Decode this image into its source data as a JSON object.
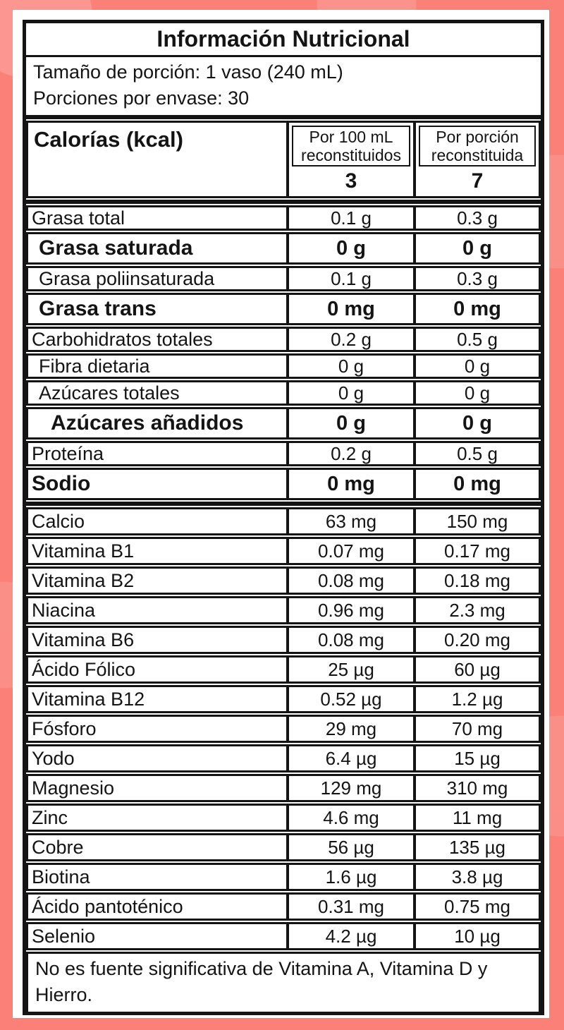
{
  "colors": {
    "background_pink": "#fa8078",
    "table_border_black": "#141414",
    "panel_white": "#ffffff"
  },
  "label": {
    "title": "Información Nutricional",
    "serving": {
      "line1": "Tamaño de porción: 1 vaso (240 mL)",
      "line2": "Porciones por envase: 30"
    },
    "calories": {
      "label": "Calorías (kcal)",
      "col1_header": "Por 100 mL reconstituidos",
      "col2_header": "Por porción reconstituida",
      "per_100ml": "3",
      "per_portion": "7"
    },
    "rows": [
      {
        "label": "Grasa total",
        "per_100ml": "0.1 g",
        "per_portion": "0.3 g",
        "style": "regular",
        "indent": 0,
        "group": "macro",
        "thick_separator_after": false
      },
      {
        "label": "Grasa saturada",
        "per_100ml": "0 g",
        "per_portion": "0 g",
        "style": "bold",
        "indent": 1,
        "group": "macro",
        "thick_separator_after": false
      },
      {
        "label": "Grasa poliinsaturada",
        "per_100ml": "0.1 g",
        "per_portion": "0.3 g",
        "style": "regular",
        "indent": 1,
        "group": "macro",
        "thick_separator_after": false
      },
      {
        "label": "Grasa trans",
        "per_100ml": "0 mg",
        "per_portion": "0 mg",
        "style": "bold",
        "indent": 1,
        "group": "macro",
        "thick_separator_after": false
      },
      {
        "label": "Carbohidratos totales",
        "per_100ml": "0.2 g",
        "per_portion": "0.5 g",
        "style": "regular",
        "indent": 0,
        "group": "macro",
        "thick_separator_after": false
      },
      {
        "label": "Fibra dietaria",
        "per_100ml": "0 g",
        "per_portion": "0 g",
        "style": "regular",
        "indent": 1,
        "group": "macro",
        "thick_separator_after": false
      },
      {
        "label": "Azúcares totales",
        "per_100ml": "0 g",
        "per_portion": "0 g",
        "style": "regular",
        "indent": 1,
        "group": "macro",
        "thick_separator_after": false
      },
      {
        "label": "Azúcares añadidos",
        "per_100ml": "0 g",
        "per_portion": "0 g",
        "style": "bold",
        "indent": 2,
        "group": "macro",
        "thick_separator_after": false
      },
      {
        "label": "Proteína",
        "per_100ml": "0.2 g",
        "per_portion": "0.5 g",
        "style": "regular",
        "indent": 0,
        "group": "macro",
        "thick_separator_after": false
      },
      {
        "label": "Sodio",
        "per_100ml": "0 mg",
        "per_portion": "0 mg",
        "style": "bold",
        "indent": 0,
        "group": "macro",
        "thick_separator_after": true
      },
      {
        "label": "Calcio",
        "per_100ml": "63 mg",
        "per_portion": "150 mg",
        "style": "regular",
        "indent": 0,
        "group": "micro",
        "thick_separator_after": false
      },
      {
        "label": "Vitamina B1",
        "per_100ml": "0.07 mg",
        "per_portion": "0.17 mg",
        "style": "regular",
        "indent": 0,
        "group": "micro",
        "thick_separator_after": false
      },
      {
        "label": "Vitamina B2",
        "per_100ml": "0.08 mg",
        "per_portion": "0.18 mg",
        "style": "regular",
        "indent": 0,
        "group": "micro",
        "thick_separator_after": false
      },
      {
        "label": "Niacina",
        "per_100ml": "0.96 mg",
        "per_portion": "2.3 mg",
        "style": "regular",
        "indent": 0,
        "group": "micro",
        "thick_separator_after": false
      },
      {
        "label": "Vitamina B6",
        "per_100ml": "0.08 mg",
        "per_portion": "0.20 mg",
        "style": "regular",
        "indent": 0,
        "group": "micro",
        "thick_separator_after": false
      },
      {
        "label": "Ácido Fólico",
        "per_100ml": "25 µg",
        "per_portion": "60 µg",
        "style": "regular",
        "indent": 0,
        "group": "micro",
        "thick_separator_after": false
      },
      {
        "label": "Vitamina B12",
        "per_100ml": "0.52 µg",
        "per_portion": "1.2 µg",
        "style": "regular",
        "indent": 0,
        "group": "micro",
        "thick_separator_after": false
      },
      {
        "label": "Fósforo",
        "per_100ml": "29 mg",
        "per_portion": "70 mg",
        "style": "regular",
        "indent": 0,
        "group": "micro",
        "thick_separator_after": false
      },
      {
        "label": "Yodo",
        "per_100ml": "6.4 µg",
        "per_portion": "15 µg",
        "style": "regular",
        "indent": 0,
        "group": "micro",
        "thick_separator_after": false
      },
      {
        "label": "Magnesio",
        "per_100ml": "129 mg",
        "per_portion": "310 mg",
        "style": "regular",
        "indent": 0,
        "group": "micro",
        "thick_separator_after": false
      },
      {
        "label": "Zinc",
        "per_100ml": "4.6 mg",
        "per_portion": "11 mg",
        "style": "regular",
        "indent": 0,
        "group": "micro",
        "thick_separator_after": false
      },
      {
        "label": "Cobre",
        "per_100ml": "56 µg",
        "per_portion": "135 µg",
        "style": "regular",
        "indent": 0,
        "group": "micro",
        "thick_separator_after": false
      },
      {
        "label": "Biotina",
        "per_100ml": "1.6 µg",
        "per_portion": "3.8 µg",
        "style": "regular",
        "indent": 0,
        "group": "micro",
        "thick_separator_after": false
      },
      {
        "label": "Ácido pantoténico",
        "per_100ml": "0.31 mg",
        "per_portion": "0.75 mg",
        "style": "regular",
        "indent": 0,
        "group": "micro",
        "thick_separator_after": false
      },
      {
        "label": "Selenio",
        "per_100ml": "4.2 µg",
        "per_portion": "10 µg",
        "style": "regular",
        "indent": 0,
        "group": "micro",
        "thick_separator_after": false
      }
    ],
    "footer": "No es fuente significativa de Vitamina A, Vitamina D y Hierro."
  }
}
